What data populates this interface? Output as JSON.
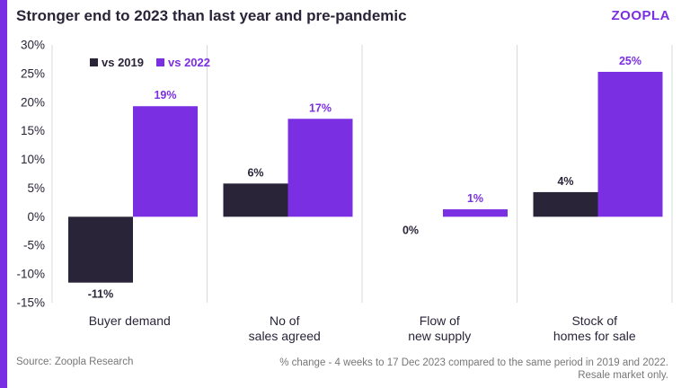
{
  "title": "Stronger end to 2023 than last year and pre-pandemic",
  "logo": "ZOOPLA",
  "colors": {
    "accent": "#7b2fe2",
    "series_2019": "#2a2438",
    "series_2022": "#7b2fe2",
    "grid": "#d9d9d9"
  },
  "footer": {
    "source": "Source: Zoopla Research",
    "note_line1": "% change - 4 weeks to 17 Dec 2023 compared to the same period in 2019 and 2022.",
    "note_line2": "Resale market only."
  },
  "chart_data": {
    "type": "bar",
    "title": "Stronger end to 2023 than last year and pre-pandemic",
    "categories": [
      [
        "Buyer demand"
      ],
      [
        "No of",
        "sales agreed"
      ],
      [
        "Flow of",
        "new supply"
      ],
      [
        "Stock of",
        "homes for sale"
      ]
    ],
    "series": [
      {
        "name": "vs 2019",
        "values": [
          -11.5,
          5.8,
          0,
          4.3
        ],
        "labels": [
          "-11%",
          "6%",
          "0%",
          "4%"
        ]
      },
      {
        "name": "vs 2022",
        "values": [
          19.3,
          17.1,
          1.3,
          25.3
        ],
        "labels": [
          "19%",
          "17%",
          "1%",
          "25%"
        ]
      }
    ],
    "yticks": [
      30,
      25,
      20,
      15,
      10,
      5,
      0,
      -5,
      -10,
      -15
    ],
    "ytick_labels": [
      "30%",
      "25%",
      "20%",
      "15%",
      "10%",
      "5%",
      "0%",
      "-5%",
      "-10%",
      "-15%"
    ],
    "ylim": [
      -15,
      30
    ],
    "legend_position": "top-left",
    "grid": "vertical separators"
  }
}
